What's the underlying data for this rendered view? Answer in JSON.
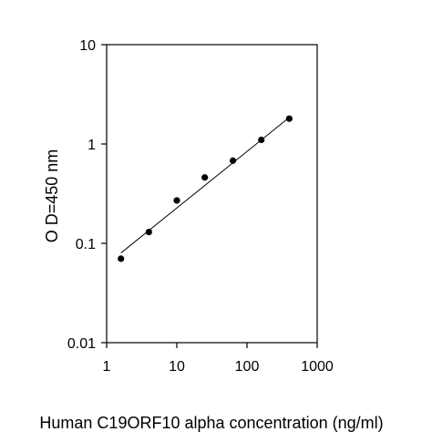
{
  "chart_data": {
    "type": "scatter",
    "title": "",
    "xlabel": "Human C19ORF10 alpha concentration (ng/ml)",
    "ylabel": "O D=450 nm",
    "x_scale": "log",
    "y_scale": "log",
    "xlim": [
      1,
      1000
    ],
    "ylim": [
      0.01,
      10
    ],
    "x_ticks": [
      1,
      10,
      100,
      1000
    ],
    "x_tick_labels": [
      "1",
      "10",
      "100",
      "1000"
    ],
    "y_ticks": [
      0.01,
      0.1,
      1,
      10
    ],
    "y_tick_labels": [
      "0.01",
      "0.1",
      "1",
      "10"
    ],
    "grid": false,
    "legend": "none",
    "series": [
      {
        "x": [
          1.6,
          4,
          10,
          25,
          63,
          160,
          400
        ],
        "y": [
          0.07,
          0.13,
          0.27,
          0.46,
          0.68,
          1.1,
          1.8
        ]
      }
    ],
    "fit_line": {
      "x": [
        1.6,
        400
      ],
      "y": [
        0.08,
        1.85
      ]
    },
    "colors": {
      "points": "#000000",
      "line": "#000000",
      "axis": "#000000"
    }
  }
}
